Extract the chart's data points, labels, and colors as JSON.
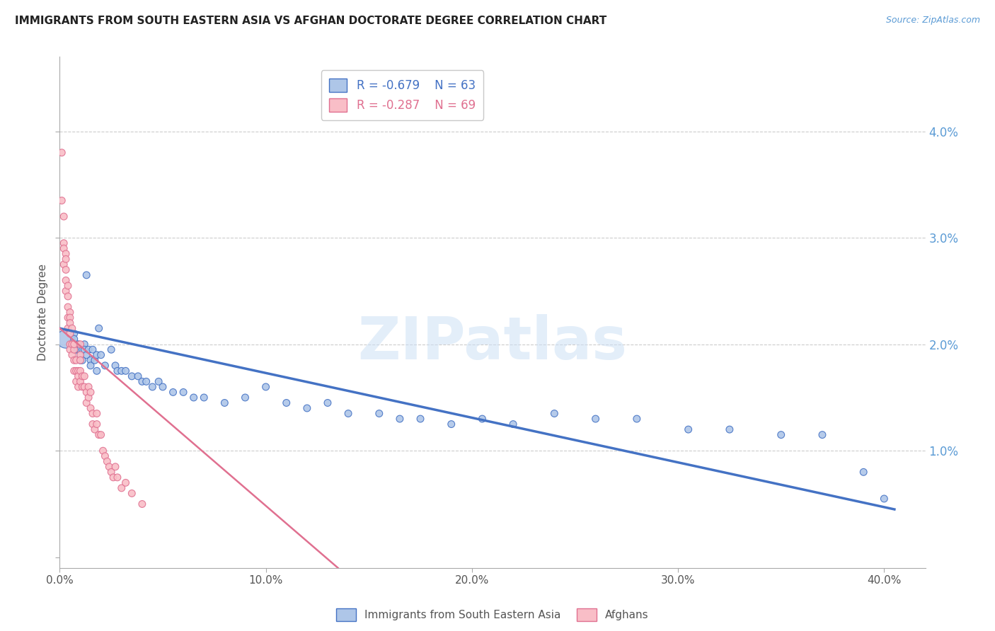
{
  "title": "IMMIGRANTS FROM SOUTH EASTERN ASIA VS AFGHAN DOCTORATE DEGREE CORRELATION CHART",
  "source": "Source: ZipAtlas.com",
  "ylabel": "Doctorate Degree",
  "xlim": [
    0.0,
    0.42
  ],
  "ylim": [
    -0.001,
    0.047
  ],
  "yticks": [
    0.0,
    0.01,
    0.02,
    0.03,
    0.04
  ],
  "ytick_labels": [
    "",
    "1.0%",
    "2.0%",
    "3.0%",
    "4.0%"
  ],
  "xticks": [
    0.0,
    0.1,
    0.2,
    0.3,
    0.4
  ],
  "xtick_labels": [
    "0.0%",
    "10.0%",
    "20.0%",
    "30.0%",
    "40.0%"
  ],
  "series1_label": "Immigrants from South Eastern Asia",
  "series1_color": "#aec6e8",
  "series1_edge_color": "#4472c4",
  "series1_line_color": "#4472c4",
  "series1_R": -0.679,
  "series1_N": 63,
  "series2_label": "Afghans",
  "series2_color": "#f9bec7",
  "series2_edge_color": "#e07090",
  "series2_line_color": "#e07090",
  "series2_R": -0.287,
  "series2_N": 69,
  "watermark": "ZIPatlas",
  "background_color": "#ffffff",
  "title_color": "#222222",
  "axis_label_color": "#555555",
  "right_axis_color": "#5b9bd5",
  "blue_trend_x0": 0.0,
  "blue_trend_y0": 0.0215,
  "blue_trend_x1": 0.405,
  "blue_trend_y1": 0.0045,
  "pink_trend_x0": 0.0,
  "pink_trend_y0": 0.0215,
  "pink_trend_x1": 0.135,
  "pink_trend_y1": -0.001,
  "blue_x": [
    0.003,
    0.007,
    0.007,
    0.008,
    0.009,
    0.009,
    0.01,
    0.01,
    0.01,
    0.011,
    0.011,
    0.012,
    0.012,
    0.013,
    0.013,
    0.014,
    0.015,
    0.015,
    0.016,
    0.017,
    0.018,
    0.018,
    0.019,
    0.02,
    0.022,
    0.025,
    0.027,
    0.028,
    0.03,
    0.032,
    0.035,
    0.038,
    0.04,
    0.042,
    0.045,
    0.048,
    0.05,
    0.055,
    0.06,
    0.065,
    0.07,
    0.08,
    0.09,
    0.1,
    0.11,
    0.12,
    0.13,
    0.14,
    0.155,
    0.165,
    0.175,
    0.19,
    0.205,
    0.22,
    0.24,
    0.26,
    0.28,
    0.305,
    0.325,
    0.35,
    0.37,
    0.39,
    0.4
  ],
  "blue_y": [
    0.0205,
    0.021,
    0.0205,
    0.0195,
    0.02,
    0.0195,
    0.0195,
    0.019,
    0.0185,
    0.0195,
    0.0185,
    0.02,
    0.0195,
    0.019,
    0.0265,
    0.0195,
    0.0185,
    0.018,
    0.0195,
    0.0185,
    0.019,
    0.0175,
    0.0215,
    0.019,
    0.018,
    0.0195,
    0.018,
    0.0175,
    0.0175,
    0.0175,
    0.017,
    0.017,
    0.0165,
    0.0165,
    0.016,
    0.0165,
    0.016,
    0.0155,
    0.0155,
    0.015,
    0.015,
    0.0145,
    0.015,
    0.016,
    0.0145,
    0.014,
    0.0145,
    0.0135,
    0.0135,
    0.013,
    0.013,
    0.0125,
    0.013,
    0.0125,
    0.0135,
    0.013,
    0.013,
    0.012,
    0.012,
    0.0115,
    0.0115,
    0.008,
    0.0055
  ],
  "blue_sizes": [
    60,
    50,
    50,
    50,
    50,
    50,
    50,
    50,
    50,
    50,
    50,
    50,
    50,
    50,
    50,
    50,
    50,
    50,
    50,
    50,
    50,
    50,
    50,
    50,
    50,
    50,
    50,
    50,
    50,
    50,
    50,
    50,
    50,
    50,
    50,
    50,
    50,
    50,
    50,
    50,
    50,
    50,
    50,
    50,
    50,
    50,
    50,
    50,
    50,
    50,
    50,
    50,
    50,
    50,
    50,
    50,
    50,
    50,
    50,
    50,
    50,
    50,
    50
  ],
  "blue_large_idx": 0,
  "blue_large_size": 350,
  "pink_x": [
    0.001,
    0.001,
    0.002,
    0.002,
    0.002,
    0.002,
    0.003,
    0.003,
    0.003,
    0.003,
    0.003,
    0.004,
    0.004,
    0.004,
    0.004,
    0.004,
    0.005,
    0.005,
    0.005,
    0.005,
    0.005,
    0.005,
    0.006,
    0.006,
    0.006,
    0.007,
    0.007,
    0.007,
    0.007,
    0.008,
    0.008,
    0.008,
    0.009,
    0.009,
    0.009,
    0.01,
    0.01,
    0.01,
    0.01,
    0.01,
    0.011,
    0.011,
    0.012,
    0.012,
    0.013,
    0.013,
    0.014,
    0.014,
    0.015,
    0.015,
    0.016,
    0.016,
    0.017,
    0.018,
    0.018,
    0.019,
    0.02,
    0.021,
    0.022,
    0.023,
    0.024,
    0.025,
    0.026,
    0.027,
    0.028,
    0.03,
    0.032,
    0.035,
    0.04
  ],
  "pink_y": [
    0.038,
    0.0335,
    0.0295,
    0.032,
    0.029,
    0.0275,
    0.0285,
    0.027,
    0.026,
    0.025,
    0.028,
    0.0245,
    0.0235,
    0.0255,
    0.0225,
    0.0215,
    0.023,
    0.021,
    0.0225,
    0.022,
    0.02,
    0.0195,
    0.0215,
    0.02,
    0.019,
    0.0195,
    0.02,
    0.0185,
    0.0175,
    0.0185,
    0.0175,
    0.0165,
    0.0175,
    0.017,
    0.016,
    0.02,
    0.019,
    0.0185,
    0.0175,
    0.0165,
    0.017,
    0.016,
    0.017,
    0.016,
    0.0155,
    0.0145,
    0.016,
    0.015,
    0.0155,
    0.014,
    0.0135,
    0.0125,
    0.012,
    0.0135,
    0.0125,
    0.0115,
    0.0115,
    0.01,
    0.0095,
    0.009,
    0.0085,
    0.008,
    0.0075,
    0.0085,
    0.0075,
    0.0065,
    0.007,
    0.006,
    0.005
  ],
  "pink_sizes": [
    50,
    50,
    50,
    50,
    50,
    50,
    50,
    50,
    50,
    50,
    50,
    50,
    50,
    50,
    50,
    50,
    50,
    50,
    50,
    50,
    50,
    50,
    50,
    50,
    50,
    50,
    50,
    50,
    50,
    50,
    50,
    50,
    50,
    50,
    50,
    50,
    50,
    50,
    50,
    50,
    50,
    50,
    50,
    50,
    50,
    50,
    50,
    50,
    50,
    50,
    50,
    50,
    50,
    50,
    50,
    50,
    50,
    50,
    50,
    50,
    50,
    50,
    50,
    50,
    50,
    50,
    50,
    50,
    50
  ]
}
